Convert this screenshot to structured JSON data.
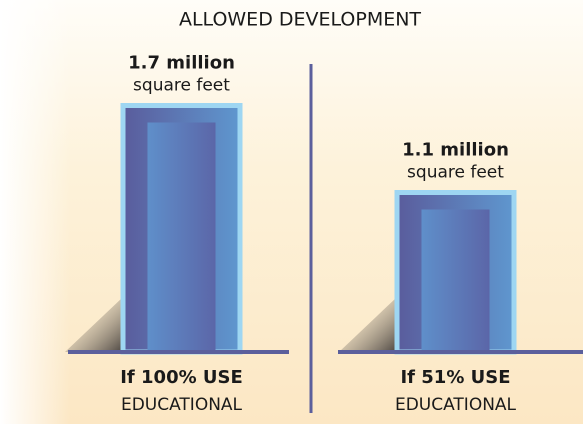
{
  "chart_data": {
    "type": "bar",
    "title": "ALLOWED DEVELOPMENT",
    "categories": [
      [
        "If 100% USE",
        "EDUCATIONAL"
      ],
      [
        "If 51% USE",
        "EDUCATIONAL"
      ]
    ],
    "values": [
      1.7,
      1.1
    ],
    "value_labels": [
      [
        "1.7 million",
        "square feet"
      ],
      [
        "1.1 million",
        "square feet"
      ]
    ],
    "color": "#5b62a3"
  }
}
